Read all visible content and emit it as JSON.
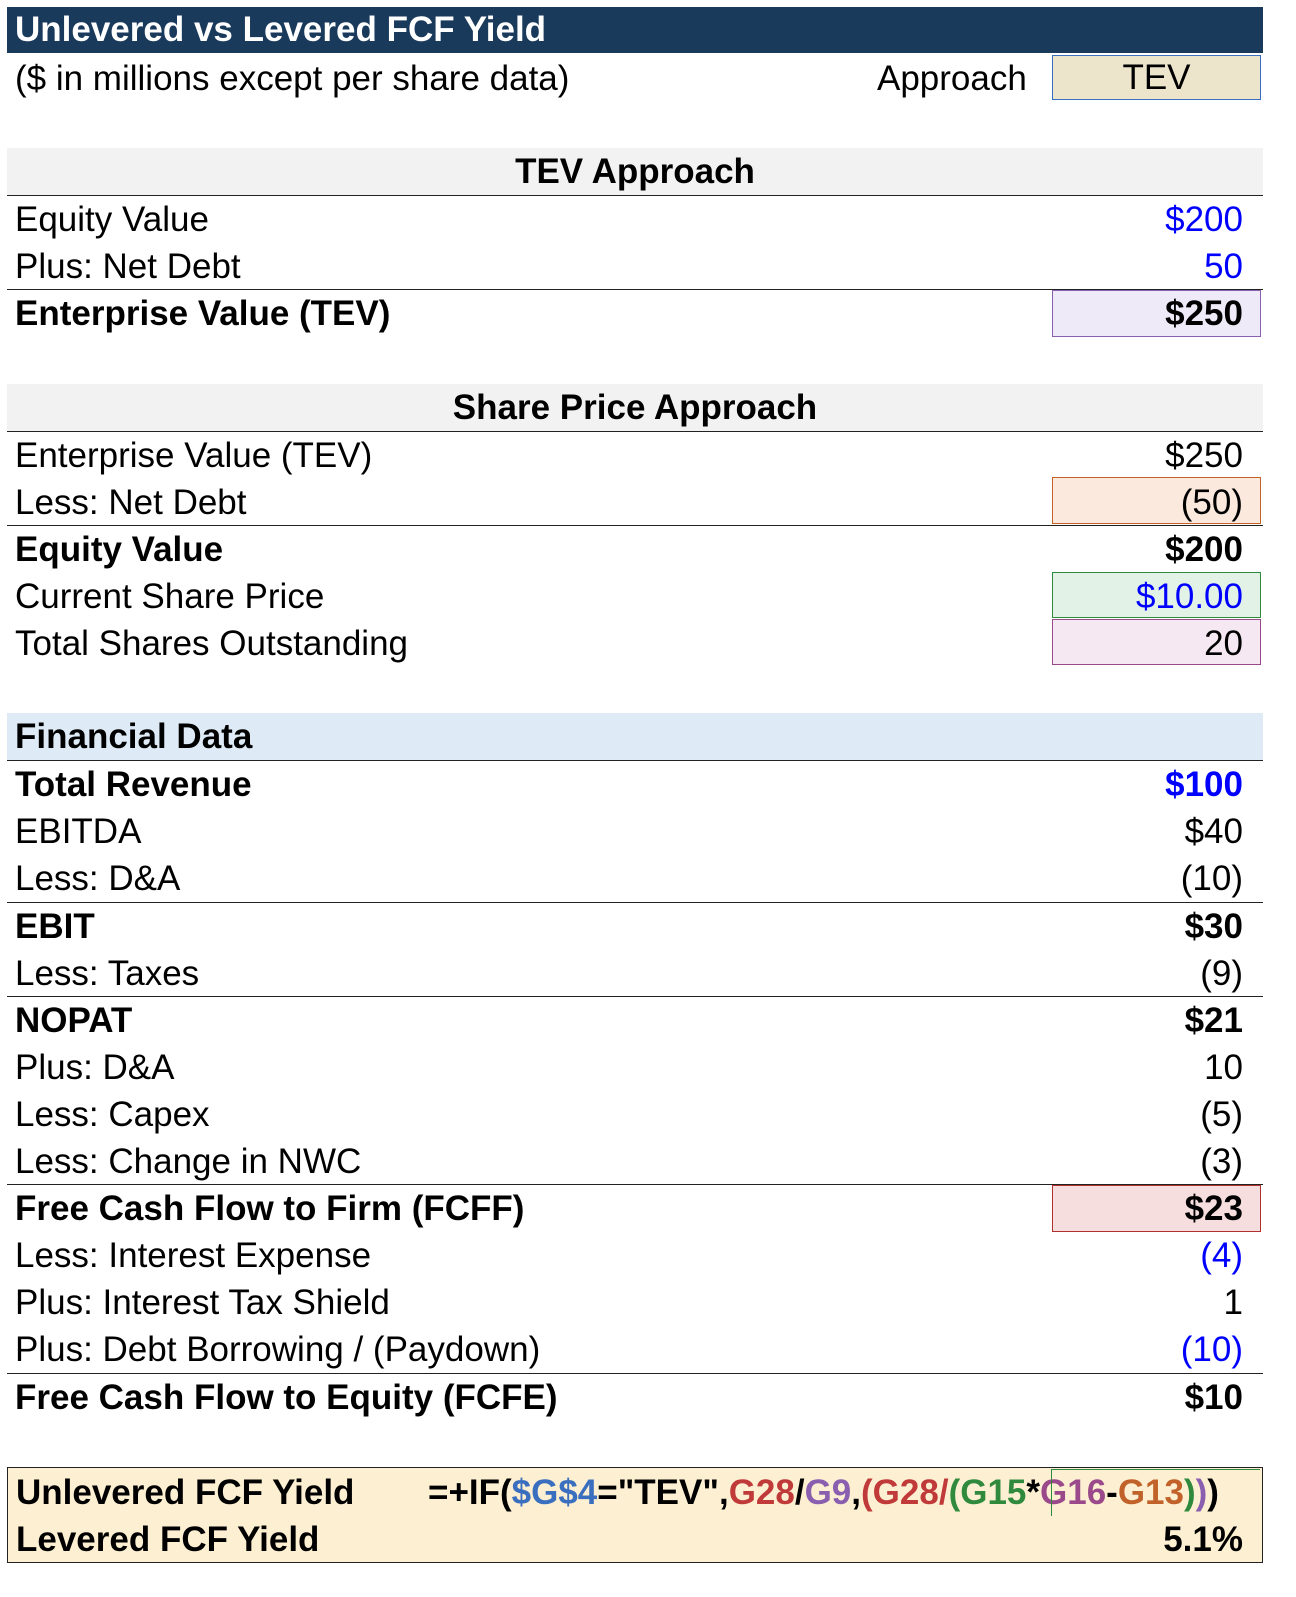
{
  "header": {
    "title": "Unlevered vs Levered FCF Yield",
    "subtitle": "($ in millions except per share data)",
    "approach_label": "Approach",
    "approach_value": "TEV"
  },
  "tev_approach": {
    "title": "TEV Approach",
    "rows": [
      {
        "label": "Equity Value",
        "value": "$200"
      },
      {
        "label": "Plus: Net Debt",
        "value": "50"
      },
      {
        "label": "Enterprise Value (TEV)",
        "value": "$250"
      }
    ]
  },
  "share_price_approach": {
    "title": "Share Price Approach",
    "rows": [
      {
        "label": "Enterprise Value (TEV)",
        "value": "$250"
      },
      {
        "label": "Less: Net Debt",
        "value": "(50)"
      },
      {
        "label": "Equity Value",
        "value": "$200"
      },
      {
        "label": "Current Share Price",
        "value": "$10.00"
      },
      {
        "label": "Total Shares Outstanding",
        "value": "20"
      }
    ]
  },
  "financial_data": {
    "title": "Financial Data",
    "rows": [
      {
        "label": "Total Revenue",
        "value": "$100"
      },
      {
        "label": "EBITDA",
        "value": "$40"
      },
      {
        "label": "Less: D&A",
        "value": "(10)"
      },
      {
        "label": "EBIT",
        "value": "$30"
      },
      {
        "label": "Less: Taxes",
        "value": "(9)"
      },
      {
        "label": "NOPAT",
        "value": "$21"
      },
      {
        "label": "Plus: D&A",
        "value": "10"
      },
      {
        "label": "Less: Capex",
        "value": "(5)"
      },
      {
        "label": "Less: Change in NWC",
        "value": "(3)"
      },
      {
        "label": "Free Cash Flow to Firm (FCFF)",
        "value": "$23"
      },
      {
        "label": "Less: Interest Expense",
        "value": "(4)"
      },
      {
        "label": "Plus: Interest Tax Shield",
        "value": "1"
      },
      {
        "label": "Plus: Debt Borrowing / (Paydown)",
        "value": "(10)"
      },
      {
        "label": "Free Cash Flow to Equity (FCFE)",
        "value": "$10"
      }
    ]
  },
  "yields": {
    "unlevered_label": "Unlevered FCF Yield",
    "formula": {
      "p1": "=+IF(",
      "p2": "$G$4",
      "p3": "=\"TEV\",",
      "p4": "G28",
      "p5": "/",
      "p6": "G9",
      "p7": ",",
      "p8": "(G28/",
      "p9": "(",
      "p10": "G15",
      "p11": "*",
      "p12": "G16",
      "p13": "-",
      "p14": "G13",
      "p15": ")",
      "p16": ")",
      "p17": ")"
    },
    "levered_label": "Levered FCF Yield",
    "levered_value": "5.1%"
  },
  "colors": {
    "title_bar": "#1a3a5c",
    "input_blue": "#0000ff",
    "approach_fill": "#ede4cc",
    "tev_fill": "#eeeaf8",
    "netdebt_fill": "#fbe9dd",
    "shareprice_fill": "#e3f2e6",
    "shares_fill": "#f6e8f2",
    "fcff_fill": "#f6dede",
    "yield_fill": "#fdf0d2",
    "fin_header_fill": "#deebf6"
  }
}
